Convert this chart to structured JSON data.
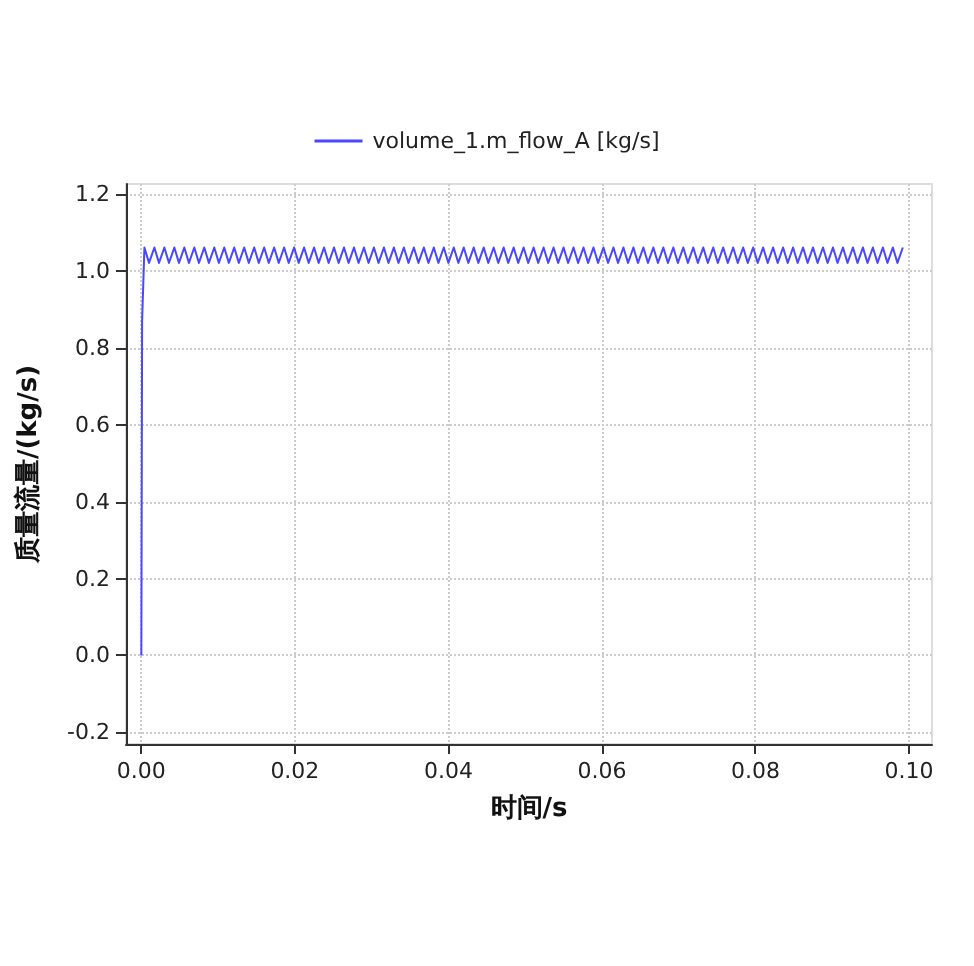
{
  "chart_data": {
    "type": "line",
    "xlabel": "时间/s",
    "ylabel": "质量流量/(kg/s)",
    "legend": "top",
    "grid": true,
    "marker": "none",
    "line_style": "solid",
    "xlim": [
      -0.002,
      0.103
    ],
    "ylim": [
      -0.23,
      1.225
    ],
    "xticks": [
      {
        "value": 0,
        "label": "0.00"
      },
      {
        "value": 0.02,
        "label": "0.02"
      },
      {
        "value": 0.04,
        "label": "0.04"
      },
      {
        "value": 0.06,
        "label": "0.06"
      },
      {
        "value": 0.08,
        "label": "0.08"
      },
      {
        "value": 0.1,
        "label": "0.10"
      }
    ],
    "yticks": [
      {
        "value": -0.2,
        "label": "-0.2"
      },
      {
        "value": 0,
        "label": "0.0"
      },
      {
        "value": 0.2,
        "label": "0.2"
      },
      {
        "value": 0.4,
        "label": "0.4"
      },
      {
        "value": 0.6,
        "label": "0.6"
      },
      {
        "value": 0.8,
        "label": "0.8"
      },
      {
        "value": 1,
        "label": "1.0"
      },
      {
        "value": 1.2,
        "label": "1.2"
      }
    ],
    "series": [
      {
        "name": "volume_1.m_flow_A [kg/s]",
        "color": "#4848ff",
        "x": [
          0,
          0.0001,
          0.0004,
          0.001,
          0.0017,
          0.0023,
          0.003,
          0.0036,
          0.0043,
          0.0049,
          0.0056,
          0.0062,
          0.0069,
          0.0075,
          0.0082,
          0.0088,
          0.0095,
          0.0101,
          0.0108,
          0.0114,
          0.0121,
          0.0127,
          0.0134,
          0.014,
          0.0147,
          0.0153,
          0.016,
          0.0166,
          0.0173,
          0.0179,
          0.0186,
          0.0192,
          0.0199,
          0.0205,
          0.0212,
          0.0218,
          0.0225,
          0.0231,
          0.0238,
          0.0244,
          0.0251,
          0.0257,
          0.0264,
          0.027,
          0.0277,
          0.0283,
          0.029,
          0.0296,
          0.0303,
          0.0309,
          0.0316,
          0.0322,
          0.0329,
          0.0335,
          0.0342,
          0.0348,
          0.0355,
          0.0361,
          0.0368,
          0.0374,
          0.0381,
          0.0387,
          0.0394,
          0.04,
          0.0407,
          0.0413,
          0.042,
          0.0426,
          0.0433,
          0.0439,
          0.0446,
          0.0452,
          0.0459,
          0.0465,
          0.0472,
          0.0478,
          0.0485,
          0.0491,
          0.0498,
          0.0504,
          0.0511,
          0.0517,
          0.0524,
          0.053,
          0.0537,
          0.0543,
          0.055,
          0.0556,
          0.0563,
          0.0569,
          0.0576,
          0.0582,
          0.0589,
          0.0595,
          0.0602,
          0.0608,
          0.0615,
          0.0621,
          0.0628,
          0.0634,
          0.0641,
          0.0647,
          0.0654,
          0.066,
          0.0667,
          0.0673,
          0.068,
          0.0686,
          0.0693,
          0.0699,
          0.0706,
          0.0712,
          0.0719,
          0.0725,
          0.0732,
          0.0738,
          0.0745,
          0.0751,
          0.0758,
          0.0764,
          0.0771,
          0.0777,
          0.0784,
          0.079,
          0.0797,
          0.0803,
          0.081,
          0.0816,
          0.0823,
          0.0829,
          0.0836,
          0.0842,
          0.0849,
          0.0855,
          0.0862,
          0.0868,
          0.0875,
          0.0881,
          0.0888,
          0.0894,
          0.0901,
          0.0907,
          0.0914,
          0.092,
          0.0927,
          0.0933,
          0.094,
          0.0946,
          0.0953,
          0.0959,
          0.0966,
          0.0972,
          0.0979,
          0.0985,
          0.0992
        ],
        "values": [
          0,
          0.87,
          1.06,
          1.02,
          1.06,
          1.02,
          1.06,
          1.02,
          1.06,
          1.02,
          1.06,
          1.02,
          1.06,
          1.02,
          1.06,
          1.02,
          1.06,
          1.02,
          1.06,
          1.02,
          1.06,
          1.02,
          1.06,
          1.02,
          1.06,
          1.02,
          1.06,
          1.02,
          1.06,
          1.02,
          1.06,
          1.02,
          1.06,
          1.02,
          1.06,
          1.02,
          1.06,
          1.02,
          1.06,
          1.02,
          1.06,
          1.02,
          1.06,
          1.02,
          1.06,
          1.02,
          1.06,
          1.02,
          1.06,
          1.02,
          1.06,
          1.02,
          1.06,
          1.02,
          1.06,
          1.02,
          1.06,
          1.02,
          1.06,
          1.02,
          1.06,
          1.02,
          1.06,
          1.02,
          1.06,
          1.02,
          1.06,
          1.02,
          1.06,
          1.02,
          1.06,
          1.02,
          1.06,
          1.02,
          1.06,
          1.02,
          1.06,
          1.02,
          1.06,
          1.02,
          1.06,
          1.02,
          1.06,
          1.02,
          1.06,
          1.02,
          1.06,
          1.02,
          1.06,
          1.02,
          1.06,
          1.02,
          1.06,
          1.02,
          1.06,
          1.02,
          1.06,
          1.02,
          1.06,
          1.02,
          1.06,
          1.02,
          1.06,
          1.02,
          1.06,
          1.02,
          1.06,
          1.02,
          1.06,
          1.02,
          1.06,
          1.02,
          1.06,
          1.02,
          1.06,
          1.02,
          1.06,
          1.02,
          1.06,
          1.02,
          1.06,
          1.02,
          1.06,
          1.02,
          1.06,
          1.02,
          1.06,
          1.02,
          1.06,
          1.02,
          1.06,
          1.02,
          1.06,
          1.02,
          1.06,
          1.02,
          1.06,
          1.02,
          1.06,
          1.02,
          1.06,
          1.02,
          1.06,
          1.02,
          1.06,
          1.02,
          1.06,
          1.02,
          1.06,
          1.02,
          1.06,
          1.02,
          1.06,
          1.02,
          1.06
        ]
      }
    ]
  }
}
